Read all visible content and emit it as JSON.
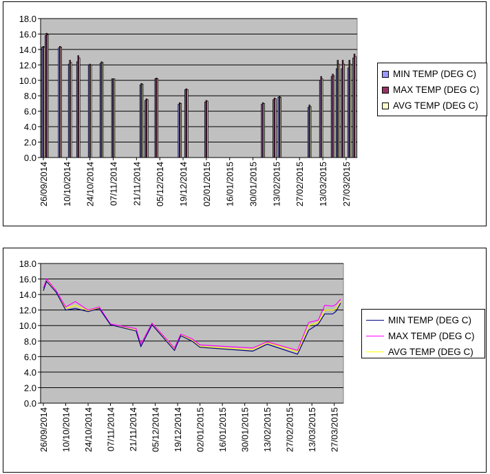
{
  "charts": [
    {
      "legend": {
        "min": "MIN TEMP (DEG C)",
        "max": "MAX TEMP (DEG C)",
        "avg": "AVG TEMP (DEG C)"
      }
    },
    {
      "legend": {
        "min": "MIN TEMP (DEG C)",
        "max": "MAX TEMP (DEG C)",
        "avg": "AVG TEMP (DEG C)"
      }
    }
  ],
  "colors": {
    "plot_bg": "#c0c0c0",
    "grid": "#000000",
    "bar_min": "#9999ff",
    "bar_max": "#993366",
    "bar_avg": "#ffffcc",
    "line_min": "#000080",
    "line_max": "#ff00ff",
    "line_avg": "#ffff00"
  },
  "chart_data": [
    {
      "type": "bar",
      "title": "",
      "xlabel": "",
      "ylabel": "",
      "ylim": [
        0,
        18
      ],
      "yticks": [
        "0.0",
        "2.0",
        "4.0",
        "6.0",
        "8.0",
        "10.0",
        "12.0",
        "14.0",
        "16.0",
        "18.0"
      ],
      "xticks": [
        "26/09/2014",
        "10/10/2014",
        "24/10/2014",
        "07/11/2014",
        "21/11/2014",
        "05/12/2014",
        "19/12/2014",
        "02/01/2015",
        "16/01/2015",
        "30/01/2015",
        "13/02/2015",
        "27/02/2015",
        "13/03/2015",
        "27/03/2015"
      ],
      "x_range": [
        "2014-09-26",
        "2015-04-01"
      ],
      "grid": true,
      "legend_position": "right",
      "series_names": [
        "MIN TEMP (DEG C)",
        "MAX TEMP (DEG C)",
        "AVG TEMP (DEG C)"
      ],
      "points": [
        {
          "date": "2014-09-26",
          "min": 14.3,
          "max": 14.4,
          "avg": 14.3
        },
        {
          "date": "2014-09-28",
          "min": 15.8,
          "max": 16.1,
          "avg": 15.9
        },
        {
          "date": "2014-10-06",
          "min": 14.2,
          "max": 14.4,
          "avg": 14.3
        },
        {
          "date": "2014-10-12",
          "min": 12.1,
          "max": 12.6,
          "avg": 12.3
        },
        {
          "date": "2014-10-17",
          "min": 12.4,
          "max": 13.2,
          "avg": 12.9
        },
        {
          "date": "2014-10-24",
          "min": 12.0,
          "max": 12.1,
          "avg": 12.0
        },
        {
          "date": "2014-10-31",
          "min": 12.2,
          "max": 12.4,
          "avg": 12.3
        },
        {
          "date": "2014-11-07",
          "min": 10.2,
          "max": 10.2,
          "avg": 10.2
        },
        {
          "date": "2014-11-24",
          "min": 9.4,
          "max": 9.6,
          "avg": 9.5
        },
        {
          "date": "2014-11-27",
          "min": 7.4,
          "max": 7.6,
          "avg": 7.5
        },
        {
          "date": "2014-12-03",
          "min": 10.2,
          "max": 10.3,
          "avg": 10.2
        },
        {
          "date": "2014-12-17",
          "min": 6.9,
          "max": 7.1,
          "avg": 7.0
        },
        {
          "date": "2014-12-21",
          "min": 8.8,
          "max": 8.9,
          "avg": 8.8
        },
        {
          "date": "2015-01-02",
          "min": 7.2,
          "max": 7.4,
          "avg": 7.3
        },
        {
          "date": "2015-02-05",
          "min": 6.9,
          "max": 7.1,
          "avg": 7.0
        },
        {
          "date": "2015-02-12",
          "min": 7.5,
          "max": 7.7,
          "avg": 7.6
        },
        {
          "date": "2015-02-15",
          "min": 7.8,
          "max": 7.9,
          "avg": 7.8
        },
        {
          "date": "2015-03-05",
          "min": 6.5,
          "max": 6.8,
          "avg": 6.6
        },
        {
          "date": "2015-03-12",
          "min": 10.0,
          "max": 10.5,
          "avg": 10.2
        },
        {
          "date": "2015-03-19",
          "min": 10.5,
          "max": 10.8,
          "avg": 10.6
        },
        {
          "date": "2015-03-22",
          "min": 11.5,
          "max": 12.6,
          "avg": 12.1
        },
        {
          "date": "2015-03-25",
          "min": 11.5,
          "max": 12.6,
          "avg": 12.1
        },
        {
          "date": "2015-03-29",
          "min": 11.6,
          "max": 12.6,
          "avg": 12.1
        },
        {
          "date": "2015-04-01",
          "min": 12.9,
          "max": 13.4,
          "avg": 13.1
        }
      ]
    },
    {
      "type": "line",
      "title": "",
      "xlabel": "",
      "ylabel": "",
      "ylim": [
        0,
        18
      ],
      "yticks": [
        "0.0",
        "2.0",
        "4.0",
        "6.0",
        "8.0",
        "10.0",
        "12.0",
        "14.0",
        "16.0",
        "18.0"
      ],
      "xticks": [
        "26/09/2014",
        "10/10/2014",
        "24/10/2014",
        "07/11/2014",
        "21/11/2014",
        "05/12/2014",
        "19/12/2014",
        "02/01/2015",
        "16/01/2015",
        "30/01/2015",
        "13/02/2015",
        "27/02/2015",
        "13/03/2015",
        "27/03/2015"
      ],
      "x_range": [
        "2014-09-26",
        "2015-03-31"
      ],
      "grid": true,
      "legend_position": "right",
      "series": [
        {
          "name": "MIN TEMP (DEG C)",
          "key": "min"
        },
        {
          "name": "MAX TEMP (DEG C)",
          "key": "max"
        },
        {
          "name": "AVG TEMP (DEG C)",
          "key": "avg"
        }
      ],
      "points": [
        {
          "date": "2014-09-26",
          "min": 14.5,
          "max": 14.8,
          "avg": 14.6
        },
        {
          "date": "2014-09-28",
          "min": 15.7,
          "max": 16.0,
          "avg": 15.9
        },
        {
          "date": "2014-10-04",
          "min": 14.3,
          "max": 14.5,
          "avg": 14.4
        },
        {
          "date": "2014-10-10",
          "min": 12.0,
          "max": 12.4,
          "avg": 12.2
        },
        {
          "date": "2014-10-16",
          "min": 12.2,
          "max": 13.1,
          "avg": 12.6
        },
        {
          "date": "2014-10-24",
          "min": 11.8,
          "max": 12.0,
          "avg": 11.9
        },
        {
          "date": "2014-10-31",
          "min": 12.2,
          "max": 12.4,
          "avg": 12.3
        },
        {
          "date": "2014-11-07",
          "min": 10.1,
          "max": 10.2,
          "avg": 10.1
        },
        {
          "date": "2014-11-23",
          "min": 9.3,
          "max": 9.6,
          "avg": 9.4
        },
        {
          "date": "2014-11-26",
          "min": 7.3,
          "max": 7.6,
          "avg": 7.4
        },
        {
          "date": "2014-12-03",
          "min": 10.1,
          "max": 10.3,
          "avg": 10.2
        },
        {
          "date": "2014-12-17",
          "min": 6.8,
          "max": 7.1,
          "avg": 7.0
        },
        {
          "date": "2014-12-21",
          "min": 8.7,
          "max": 8.9,
          "avg": 8.8
        },
        {
          "date": "2014-12-28",
          "min": 8.0,
          "max": 8.3,
          "avg": 8.1
        },
        {
          "date": "2015-01-02",
          "min": 7.2,
          "max": 7.5,
          "avg": 7.3
        },
        {
          "date": "2015-02-04",
          "min": 6.7,
          "max": 7.1,
          "avg": 6.9
        },
        {
          "date": "2015-02-13",
          "min": 7.6,
          "max": 7.9,
          "avg": 7.8
        },
        {
          "date": "2015-03-04",
          "min": 6.3,
          "max": 6.8,
          "avg": 6.6
        },
        {
          "date": "2015-03-11",
          "min": 9.4,
          "max": 10.4,
          "avg": 10.0
        },
        {
          "date": "2015-03-17",
          "min": 10.2,
          "max": 10.7,
          "avg": 10.4
        },
        {
          "date": "2015-03-21",
          "min": 11.5,
          "max": 12.6,
          "avg": 12.0
        },
        {
          "date": "2015-03-26",
          "min": 11.5,
          "max": 12.5,
          "avg": 12.0
        },
        {
          "date": "2015-03-28",
          "min": 11.8,
          "max": 12.7,
          "avg": 12.1
        },
        {
          "date": "2015-03-31",
          "min": 12.9,
          "max": 13.4,
          "avg": 13.1
        }
      ]
    }
  ]
}
